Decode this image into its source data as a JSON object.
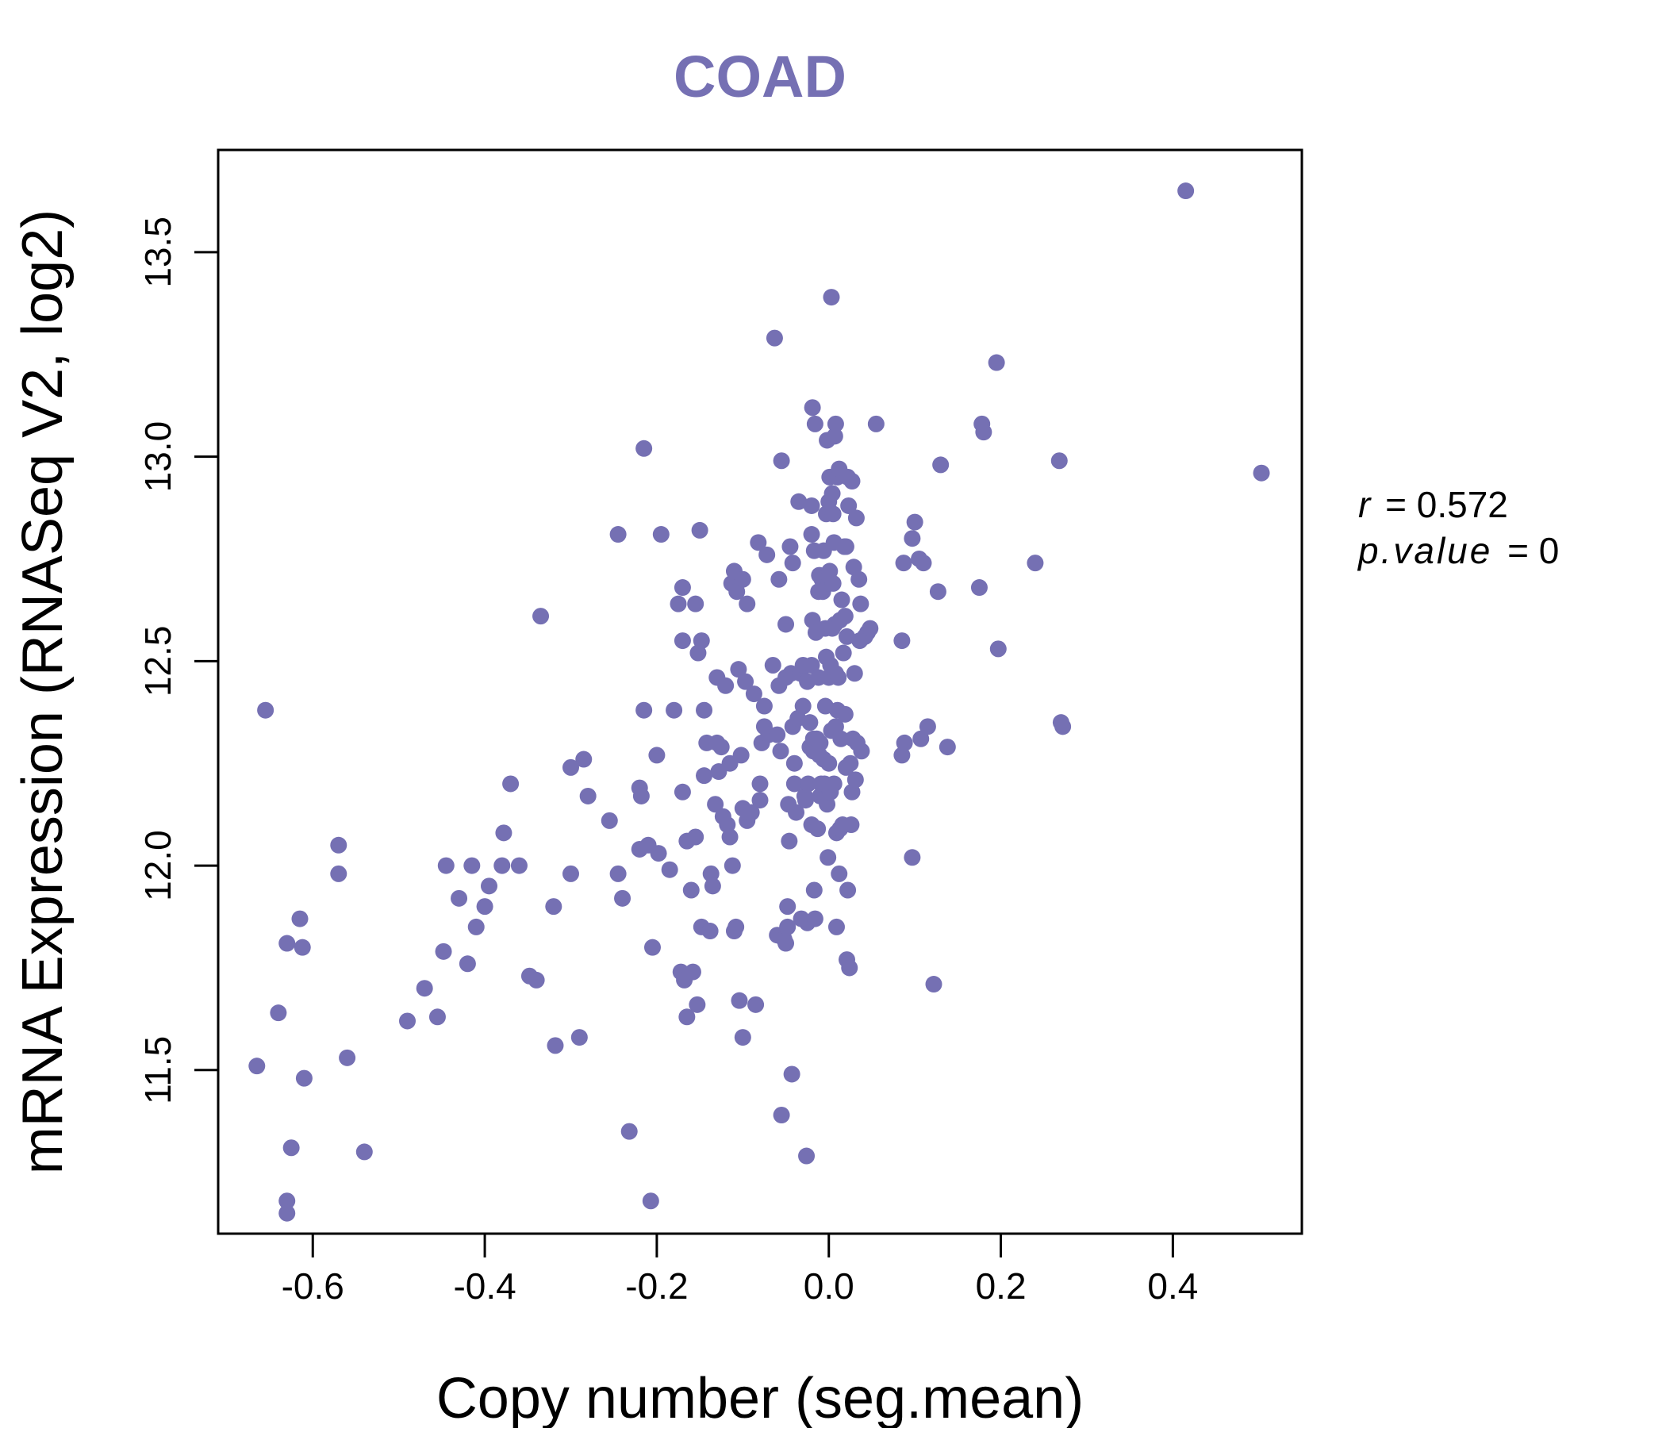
{
  "chart_data": {
    "type": "scatter",
    "title": "COAD",
    "xlabel": "Copy number (seg.mean)",
    "ylabel": "mRNA Expression (RNASeq V2, log2)",
    "xlim": [
      -0.71,
      0.55
    ],
    "ylim": [
      11.1,
      13.75
    ],
    "xticks": [
      -0.6,
      -0.4,
      -0.2,
      0.0,
      0.2,
      0.4
    ],
    "xtick_labels": [
      "-0.6",
      "-0.4",
      "-0.2",
      "0.0",
      "0.2",
      "0.4"
    ],
    "yticks": [
      11.5,
      12.0,
      12.5,
      13.0,
      13.5
    ],
    "ytick_labels": [
      "11.5",
      "12.0",
      "12.5",
      "13.0",
      "13.5"
    ],
    "grid": false,
    "point_color": "#7570b3",
    "title_color": "#7570b3",
    "annotations": {
      "r_label": "r",
      "r_value": "0.572",
      "p_label": "p.value",
      "p_value": "0"
    },
    "points": [
      [
        -0.665,
        11.51
      ],
      [
        -0.655,
        12.38
      ],
      [
        -0.64,
        11.64
      ],
      [
        -0.63,
        11.81
      ],
      [
        -0.63,
        11.18
      ],
      [
        -0.63,
        11.15
      ],
      [
        -0.625,
        11.31
      ],
      [
        -0.615,
        11.87
      ],
      [
        -0.612,
        11.8
      ],
      [
        -0.61,
        11.48
      ],
      [
        -0.57,
        12.05
      ],
      [
        -0.57,
        11.98
      ],
      [
        -0.56,
        11.53
      ],
      [
        -0.54,
        11.3
      ],
      [
        -0.49,
        11.62
      ],
      [
        -0.47,
        11.7
      ],
      [
        -0.455,
        11.63
      ],
      [
        -0.448,
        11.79
      ],
      [
        -0.445,
        12.0
      ],
      [
        -0.43,
        11.92
      ],
      [
        -0.42,
        11.76
      ],
      [
        -0.415,
        12.0
      ],
      [
        -0.41,
        11.85
      ],
      [
        -0.4,
        11.9
      ],
      [
        -0.395,
        11.95
      ],
      [
        -0.38,
        12.0
      ],
      [
        -0.378,
        12.08
      ],
      [
        -0.37,
        12.2
      ],
      [
        -0.36,
        12.0
      ],
      [
        -0.348,
        11.73
      ],
      [
        -0.34,
        11.72
      ],
      [
        -0.335,
        12.61
      ],
      [
        -0.32,
        11.9
      ],
      [
        -0.318,
        11.56
      ],
      [
        -0.3,
        11.98
      ],
      [
        -0.3,
        12.24
      ],
      [
        -0.29,
        11.58
      ],
      [
        -0.285,
        12.26
      ],
      [
        -0.28,
        12.17
      ],
      [
        -0.255,
        12.11
      ],
      [
        -0.245,
        11.98
      ],
      [
        -0.245,
        12.81
      ],
      [
        -0.24,
        11.92
      ],
      [
        -0.232,
        11.35
      ],
      [
        -0.22,
        12.19
      ],
      [
        -0.22,
        12.04
      ],
      [
        -0.218,
        12.17
      ],
      [
        -0.215,
        13.02
      ],
      [
        -0.215,
        12.38
      ],
      [
        -0.21,
        12.05
      ],
      [
        -0.207,
        11.18
      ],
      [
        -0.205,
        11.8
      ],
      [
        -0.2,
        12.27
      ],
      [
        -0.198,
        12.03
      ],
      [
        -0.195,
        12.81
      ],
      [
        -0.185,
        11.99
      ],
      [
        -0.18,
        12.38
      ],
      [
        -0.175,
        12.64
      ],
      [
        -0.172,
        11.74
      ],
      [
        -0.17,
        12.55
      ],
      [
        -0.17,
        12.18
      ],
      [
        -0.17,
        12.68
      ],
      [
        -0.168,
        11.72
      ],
      [
        -0.165,
        12.06
      ],
      [
        -0.165,
        11.63
      ],
      [
        -0.16,
        11.94
      ],
      [
        -0.158,
        11.74
      ],
      [
        -0.155,
        12.07
      ],
      [
        -0.155,
        12.64
      ],
      [
        -0.153,
        11.66
      ],
      [
        -0.152,
        12.52
      ],
      [
        -0.15,
        12.82
      ],
      [
        -0.148,
        12.55
      ],
      [
        -0.148,
        11.85
      ],
      [
        -0.145,
        12.22
      ],
      [
        -0.145,
        12.38
      ],
      [
        -0.142,
        12.3
      ],
      [
        -0.138,
        11.84
      ],
      [
        -0.137,
        11.98
      ],
      [
        -0.135,
        11.95
      ],
      [
        -0.132,
        12.15
      ],
      [
        -0.13,
        12.46
      ],
      [
        -0.13,
        12.3
      ],
      [
        -0.128,
        12.23
      ],
      [
        -0.125,
        12.29
      ],
      [
        -0.123,
        12.12
      ],
      [
        -0.12,
        12.44
      ],
      [
        -0.118,
        12.1
      ],
      [
        -0.115,
        12.07
      ],
      [
        -0.115,
        12.25
      ],
      [
        -0.113,
        12.69
      ],
      [
        -0.112,
        12.0
      ],
      [
        -0.11,
        11.84
      ],
      [
        -0.11,
        12.72
      ],
      [
        -0.108,
        11.85
      ],
      [
        -0.107,
        12.67
      ],
      [
        -0.105,
        12.48
      ],
      [
        -0.104,
        11.67
      ],
      [
        -0.102,
        12.27
      ],
      [
        -0.1,
        12.14
      ],
      [
        -0.1,
        11.58
      ],
      [
        -0.1,
        12.7
      ],
      [
        -0.097,
        12.45
      ],
      [
        -0.095,
        12.11
      ],
      [
        -0.095,
        12.64
      ],
      [
        -0.09,
        12.13
      ],
      [
        -0.087,
        12.42
      ],
      [
        -0.085,
        11.66
      ],
      [
        -0.082,
        12.79
      ],
      [
        -0.08,
        12.2
      ],
      [
        -0.08,
        12.16
      ],
      [
        -0.078,
        12.3
      ],
      [
        -0.075,
        12.39
      ],
      [
        -0.075,
        12.34
      ],
      [
        -0.072,
        12.76
      ],
      [
        -0.07,
        12.32
      ],
      [
        -0.065,
        12.49
      ],
      [
        -0.063,
        13.29
      ],
      [
        -0.06,
        11.83
      ],
      [
        -0.06,
        12.32
      ],
      [
        -0.058,
        12.7
      ],
      [
        -0.058,
        12.44
      ],
      [
        -0.056,
        12.28
      ],
      [
        -0.055,
        12.99
      ],
      [
        -0.055,
        11.39
      ],
      [
        -0.052,
        11.82
      ],
      [
        -0.05,
        12.46
      ],
      [
        -0.05,
        11.81
      ],
      [
        -0.05,
        12.59
      ],
      [
        -0.048,
        11.85
      ],
      [
        -0.048,
        11.9
      ],
      [
        -0.047,
        12.15
      ],
      [
        -0.046,
        12.06
      ],
      [
        -0.045,
        12.78
      ],
      [
        -0.044,
        12.47
      ],
      [
        -0.043,
        11.49
      ],
      [
        -0.042,
        12.34
      ],
      [
        -0.042,
        12.74
      ],
      [
        -0.04,
        12.25
      ],
      [
        -0.04,
        12.2
      ],
      [
        -0.038,
        12.13
      ],
      [
        -0.036,
        12.36
      ],
      [
        -0.035,
        12.89
      ],
      [
        -0.033,
        12.47
      ],
      [
        -0.032,
        11.87
      ],
      [
        -0.03,
        12.49
      ],
      [
        -0.03,
        12.39
      ],
      [
        -0.028,
        12.17
      ],
      [
        -0.027,
        12.16
      ],
      [
        -0.026,
        11.29
      ],
      [
        -0.025,
        12.45
      ],
      [
        -0.025,
        11.86
      ],
      [
        -0.024,
        12.2
      ],
      [
        -0.022,
        12.35
      ],
      [
        -0.022,
        12.29
      ],
      [
        -0.02,
        12.49
      ],
      [
        -0.02,
        12.81
      ],
      [
        -0.02,
        12.1
      ],
      [
        -0.02,
        12.88
      ],
      [
        -0.019,
        12.6
      ],
      [
        -0.019,
        13.12
      ],
      [
        -0.018,
        12.28
      ],
      [
        -0.018,
        12.31
      ],
      [
        -0.017,
        11.94
      ],
      [
        -0.017,
        12.77
      ],
      [
        -0.016,
        11.87
      ],
      [
        -0.016,
        13.08
      ],
      [
        -0.015,
        12.57
      ],
      [
        -0.014,
        12.31
      ],
      [
        -0.013,
        12.09
      ],
      [
        -0.012,
        12.67
      ],
      [
        -0.012,
        12.46
      ],
      [
        -0.011,
        12.71
      ],
      [
        -0.011,
        12.27
      ],
      [
        -0.01,
        12.3
      ],
      [
        -0.01,
        12.17
      ],
      [
        -0.009,
        12.2
      ],
      [
        -0.008,
        12.7
      ],
      [
        -0.007,
        12.67
      ],
      [
        -0.006,
        12.26
      ],
      [
        -0.006,
        12.77
      ],
      [
        -0.005,
        12.2
      ],
      [
        -0.004,
        12.58
      ],
      [
        -0.004,
        12.39
      ],
      [
        -0.003,
        12.51
      ],
      [
        -0.003,
        12.86
      ],
      [
        -0.002,
        13.04
      ],
      [
        -0.002,
        12.15
      ],
      [
        -0.001,
        12.02
      ],
      [
        0.0,
        12.89
      ],
      [
        0.0,
        12.46
      ],
      [
        0.0,
        12.25
      ],
      [
        0.0,
        12.69
      ],
      [
        0.001,
        12.72
      ],
      [
        0.001,
        12.95
      ],
      [
        0.002,
        12.18
      ],
      [
        0.002,
        12.49
      ],
      [
        0.003,
        13.39
      ],
      [
        0.003,
        12.33
      ],
      [
        0.004,
        12.91
      ],
      [
        0.004,
        12.58
      ],
      [
        0.005,
        12.69
      ],
      [
        0.005,
        12.86
      ],
      [
        0.006,
        12.79
      ],
      [
        0.006,
        12.2
      ],
      [
        0.007,
        13.05
      ],
      [
        0.007,
        12.59
      ],
      [
        0.008,
        12.34
      ],
      [
        0.008,
        12.47
      ],
      [
        0.008,
        13.08
      ],
      [
        0.009,
        11.85
      ],
      [
        0.009,
        12.08
      ],
      [
        0.01,
        12.95
      ],
      [
        0.01,
        12.38
      ],
      [
        0.011,
        12.46
      ],
      [
        0.012,
        11.98
      ],
      [
        0.012,
        12.97
      ],
      [
        0.013,
        12.6
      ],
      [
        0.013,
        12.09
      ],
      [
        0.014,
        12.31
      ],
      [
        0.015,
        12.65
      ],
      [
        0.016,
        12.1
      ],
      [
        0.017,
        12.52
      ],
      [
        0.018,
        12.78
      ],
      [
        0.019,
        12.61
      ],
      [
        0.019,
        12.37
      ],
      [
        0.02,
        12.24
      ],
      [
        0.02,
        12.78
      ],
      [
        0.021,
        12.56
      ],
      [
        0.021,
        11.77
      ],
      [
        0.022,
        12.95
      ],
      [
        0.022,
        11.94
      ],
      [
        0.023,
        12.88
      ],
      [
        0.024,
        11.75
      ],
      [
        0.025,
        12.25
      ],
      [
        0.026,
        12.1
      ],
      [
        0.027,
        12.18
      ],
      [
        0.027,
        12.94
      ],
      [
        0.028,
        12.31
      ],
      [
        0.029,
        12.73
      ],
      [
        0.03,
        12.47
      ],
      [
        0.031,
        12.21
      ],
      [
        0.032,
        12.85
      ],
      [
        0.033,
        12.3
      ],
      [
        0.035,
        12.7
      ],
      [
        0.036,
        12.55
      ],
      [
        0.037,
        12.64
      ],
      [
        0.038,
        12.28
      ],
      [
        0.042,
        12.56
      ],
      [
        0.045,
        12.57
      ],
      [
        0.048,
        12.58
      ],
      [
        0.055,
        13.08
      ],
      [
        0.085,
        12.55
      ],
      [
        0.085,
        12.27
      ],
      [
        0.087,
        12.74
      ],
      [
        0.088,
        12.3
      ],
      [
        0.097,
        12.8
      ],
      [
        0.097,
        12.02
      ],
      [
        0.1,
        12.84
      ],
      [
        0.105,
        12.75
      ],
      [
        0.107,
        12.31
      ],
      [
        0.11,
        12.74
      ],
      [
        0.115,
        12.34
      ],
      [
        0.122,
        11.71
      ],
      [
        0.127,
        12.67
      ],
      [
        0.13,
        12.98
      ],
      [
        0.138,
        12.29
      ],
      [
        0.175,
        12.68
      ],
      [
        0.178,
        13.08
      ],
      [
        0.18,
        13.06
      ],
      [
        0.195,
        13.23
      ],
      [
        0.197,
        12.53
      ],
      [
        0.24,
        12.74
      ],
      [
        0.268,
        12.99
      ],
      [
        0.27,
        12.35
      ],
      [
        0.272,
        12.34
      ],
      [
        0.415,
        13.65
      ],
      [
        0.503,
        12.96
      ]
    ]
  }
}
